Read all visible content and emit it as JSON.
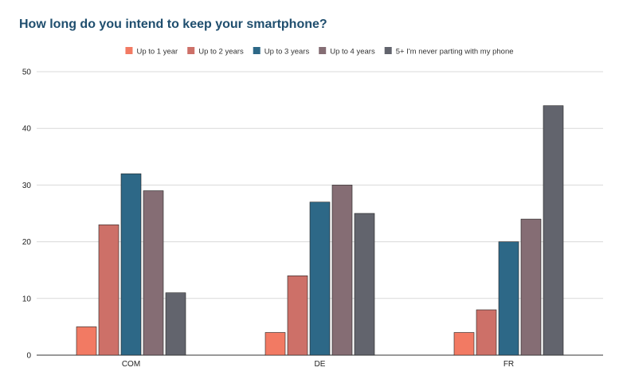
{
  "chart_data": {
    "type": "bar",
    "title": "How long do you intend to keep your smartphone?",
    "categories": [
      "COM",
      "DE",
      "FR"
    ],
    "series": [
      {
        "name": "Up to 1 year",
        "color": "#f27a63",
        "values": [
          5,
          4,
          4
        ]
      },
      {
        "name": "Up to 2 years",
        "color": "#cd7068",
        "values": [
          23,
          14,
          8
        ]
      },
      {
        "name": "Up to 3 years",
        "color": "#2d6887",
        "values": [
          32,
          27,
          20
        ]
      },
      {
        "name": "Up to 4 years",
        "color": "#856d74",
        "values": [
          29,
          30,
          24
        ]
      },
      {
        "name": "5+ I'm never parting with my phone",
        "color": "#62646d",
        "values": [
          11,
          25,
          44
        ]
      }
    ],
    "ylim": [
      0,
      50
    ],
    "yticks": [
      0,
      10,
      20,
      30,
      40,
      50
    ],
    "xlabel": "",
    "ylabel": "",
    "grid": true,
    "legend_position": "top-center"
  }
}
